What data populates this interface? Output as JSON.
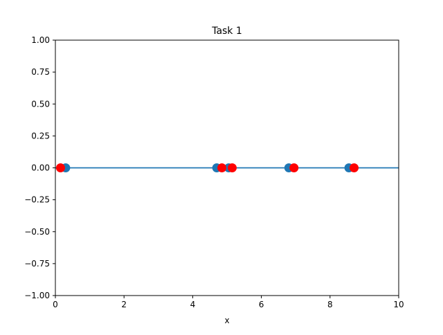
{
  "chart_data": {
    "type": "scatter",
    "title": "Task 1",
    "xlabel": "x",
    "ylabel": "",
    "xlim": [
      0,
      10
    ],
    "ylim": [
      -1.0,
      1.0
    ],
    "xticks": [
      "0",
      "2",
      "4",
      "6",
      "8",
      "10"
    ],
    "yticks": [
      "1.00",
      "0.75",
      "0.50",
      "0.25",
      "0.00",
      "−0.25",
      "−0.50",
      "−0.75",
      "−1.00"
    ],
    "grid": false,
    "legend": false,
    "baseline": {
      "y": 0.0,
      "color": "#1f77b4"
    },
    "series": [
      {
        "color": "#1f77b4",
        "points": [
          {
            "x": 0.3,
            "y": 0.0
          },
          {
            "x": 4.7,
            "y": 0.0
          },
          {
            "x": 5.05,
            "y": 0.0
          },
          {
            "x": 6.8,
            "y": 0.0
          },
          {
            "x": 8.55,
            "y": 0.0
          }
        ]
      },
      {
        "color": "#ff0000",
        "points": [
          {
            "x": 0.15,
            "y": 0.0
          },
          {
            "x": 4.85,
            "y": 0.0
          },
          {
            "x": 5.15,
            "y": 0.0
          },
          {
            "x": 6.95,
            "y": 0.0
          },
          {
            "x": 8.7,
            "y": 0.0
          }
        ]
      }
    ]
  }
}
